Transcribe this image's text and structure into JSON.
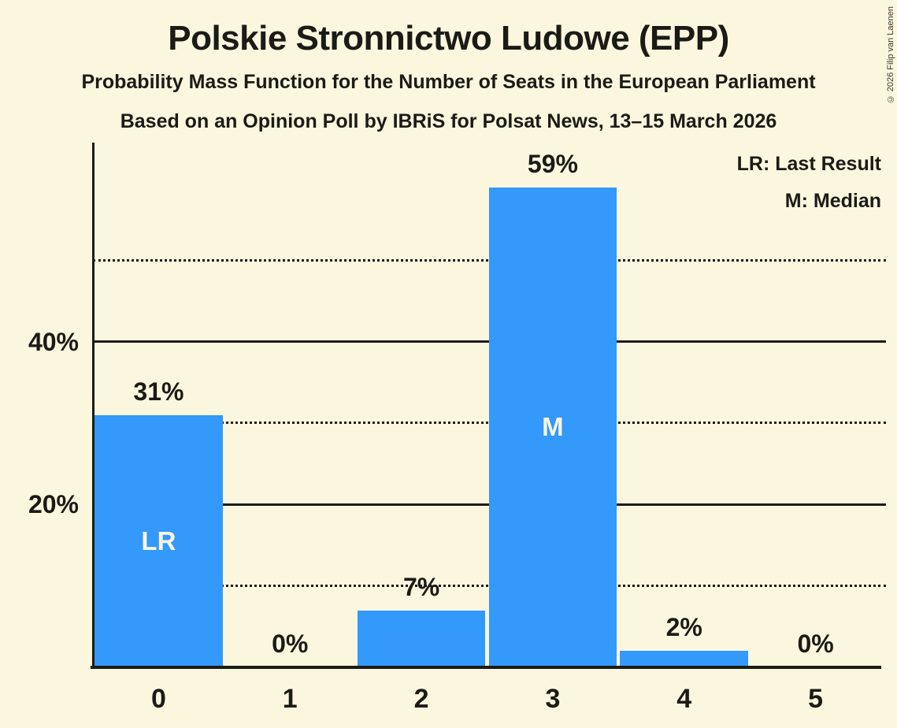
{
  "page": {
    "title": "Polskie Stronnictwo Ludowe (EPP)",
    "subtitle1": "Probability Mass Function for the Number of Seats in the European Parliament",
    "subtitle2": "Based on an Opinion Poll by IBRiS for Polsat News, 13–15 March 2026",
    "copyright": "© 2026 Filip van Laenen"
  },
  "legend": {
    "last_result": "LR: Last Result",
    "median": "M: Median"
  },
  "colors": {
    "background": "#FBF6DE",
    "bar": "#3399FA",
    "text": "#1B1B16",
    "bar_text": "#F9F4E0"
  },
  "chart_data": {
    "type": "bar",
    "title": "Polskie Stronnictwo Ludowe (EPP)",
    "categories": [
      "0",
      "1",
      "2",
      "3",
      "4",
      "5"
    ],
    "values": [
      31,
      0,
      7,
      59,
      2,
      0
    ],
    "value_labels": [
      "31%",
      "0%",
      "7%",
      "59%",
      "2%",
      "0%"
    ],
    "bar_annotations": [
      "LR",
      "",
      "",
      "M",
      "",
      ""
    ],
    "ylim": [
      0,
      64.5
    ],
    "grid": "horizontal",
    "legend_position": "top-right",
    "y_ticks": [
      {
        "value": 10,
        "label": "",
        "style": "dotted"
      },
      {
        "value": 20,
        "label": "20%",
        "style": "solid"
      },
      {
        "value": 30,
        "label": "",
        "style": "dotted"
      },
      {
        "value": 40,
        "label": "40%",
        "style": "solid"
      },
      {
        "value": 50,
        "label": "",
        "style": "dotted"
      }
    ]
  }
}
